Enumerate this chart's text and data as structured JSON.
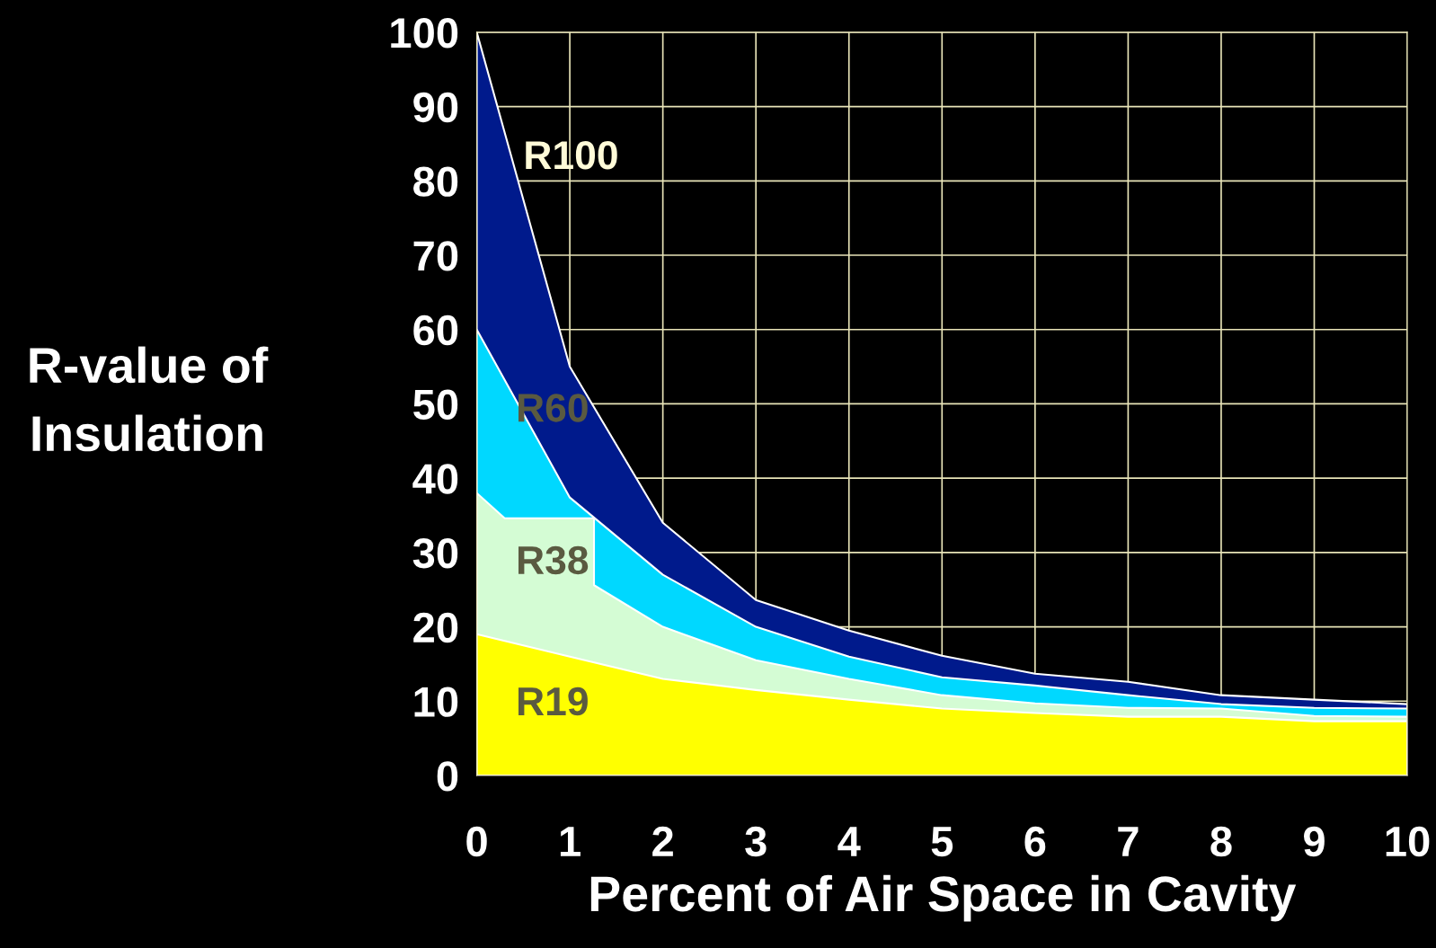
{
  "chart_data": {
    "type": "area",
    "xlabel": "Percent of Air Space in Cavity",
    "ylabel": "R-value of\nInsulation",
    "xlim": [
      0,
      10
    ],
    "ylim": [
      0,
      100
    ],
    "xticks": [
      0,
      1,
      2,
      3,
      4,
      5,
      6,
      7,
      8,
      9,
      10
    ],
    "yticks": [
      0,
      10,
      20,
      30,
      40,
      50,
      60,
      70,
      80,
      90,
      100
    ],
    "grid": true,
    "legend": false,
    "series": [
      {
        "name": "R100",
        "color": "#001a8c",
        "x": [
          0,
          1,
          2,
          3,
          4,
          5,
          6,
          7,
          8,
          9,
          10
        ],
        "values": [
          100,
          55,
          34,
          23.6,
          19.5,
          16.1,
          13.7,
          12.6,
          10.8,
          10.2,
          9.6
        ]
      },
      {
        "name": "R60",
        "color": "#00d8ff",
        "x": [
          0,
          1,
          2,
          3,
          4,
          5,
          6,
          7,
          8,
          9,
          10
        ],
        "values": [
          60,
          37.4,
          27,
          20,
          16,
          13.2,
          12.1,
          10.8,
          9.6,
          9.1,
          9.0
        ]
      },
      {
        "name": "R38",
        "color": "#d4fcd4",
        "x": [
          0,
          0.3,
          1.26,
          1.26,
          2,
          3,
          4,
          5,
          6,
          7,
          8,
          9,
          10
        ],
        "values": [
          38,
          34.6,
          34.6,
          25.6,
          20,
          15.5,
          13,
          10.8,
          9.7,
          9.1,
          9.0,
          8.0,
          7.9
        ]
      },
      {
        "name": "R19",
        "color": "#ffff00",
        "x": [
          0,
          1,
          2,
          3,
          4,
          5,
          6,
          7,
          8,
          9,
          10
        ],
        "values": [
          19,
          16,
          13,
          11.5,
          10.2,
          9.0,
          8.4,
          7.9,
          7.9,
          7.3,
          7.3
        ]
      }
    ]
  }
}
